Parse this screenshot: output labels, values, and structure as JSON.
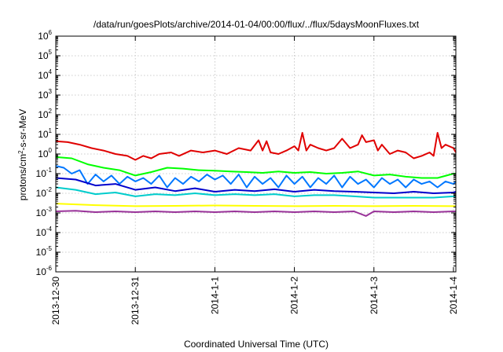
{
  "chart_data": {
    "type": "line",
    "title": "/data/run/goesPlots/archive/2014-01-04/00:00/flux/../flux/5daysMoonFluxes.txt",
    "xlabel": "Coordinated Universal Time (UTC)",
    "ylabel": {
      "prefix": "protons/cm",
      "sup": "2",
      "suffix": "-s-sr-MeV"
    },
    "y_scale": "log",
    "ylim": [
      1e-06,
      1000000.0
    ],
    "xlim": [
      0,
      5.03
    ],
    "grid": true,
    "x_ticks": [
      {
        "v": 0,
        "label": "2013-12-30"
      },
      {
        "v": 1,
        "label": "2013-12-31"
      },
      {
        "v": 2,
        "label": "2014-1-1"
      },
      {
        "v": 3,
        "label": "2014-1-2"
      },
      {
        "v": 4,
        "label": "2014-1-3"
      },
      {
        "v": 5,
        "label": "2014-1-4"
      }
    ],
    "y_ticks": [
      {
        "v": -6,
        "base": "10",
        "exp": "-6"
      },
      {
        "v": -5,
        "base": "10",
        "exp": "-5"
      },
      {
        "v": -4,
        "base": "10",
        "exp": "-4"
      },
      {
        "v": -3,
        "base": "10",
        "exp": "-3"
      },
      {
        "v": -2,
        "base": "10",
        "exp": "-2"
      },
      {
        "v": -1,
        "base": "10",
        "exp": "-1"
      },
      {
        "v": 0,
        "base": "10",
        "exp": "0"
      },
      {
        "v": 1,
        "base": "10",
        "exp": "1"
      },
      {
        "v": 2,
        "base": "10",
        "exp": "2"
      },
      {
        "v": 3,
        "base": "10",
        "exp": "3"
      },
      {
        "v": 4,
        "base": "10",
        "exp": "4"
      },
      {
        "v": 5,
        "base": "10",
        "exp": "5"
      },
      {
        "v": 6,
        "base": "10",
        "exp": "6"
      }
    ],
    "series": [
      {
        "color": "#e00000",
        "x": [
          0,
          0.15,
          0.3,
          0.45,
          0.6,
          0.75,
          0.9,
          1.0,
          1.1,
          1.2,
          1.3,
          1.45,
          1.55,
          1.7,
          1.85,
          2.0,
          2.15,
          2.3,
          2.45,
          2.55,
          2.6,
          2.65,
          2.7,
          2.8,
          2.9,
          3.0,
          3.05,
          3.1,
          3.15,
          3.2,
          3.3,
          3.4,
          3.5,
          3.6,
          3.7,
          3.8,
          3.85,
          3.9,
          4.0,
          4.05,
          4.1,
          4.2,
          4.3,
          4.4,
          4.5,
          4.6,
          4.7,
          4.75,
          4.8,
          4.85,
          4.9,
          5.0,
          5.03
        ],
        "y": [
          4.5,
          4,
          3,
          2,
          1.5,
          1,
          0.8,
          0.5,
          0.8,
          0.6,
          1,
          1.2,
          0.8,
          1.5,
          1.2,
          1.5,
          1,
          2,
          1.5,
          5,
          1.5,
          4.5,
          1.2,
          1,
          1.5,
          2.5,
          1.5,
          12,
          1.5,
          3,
          2,
          1.5,
          2,
          6,
          2,
          3,
          9,
          4,
          5,
          1.5,
          3,
          1,
          1.5,
          1.2,
          0.6,
          0.8,
          1.2,
          0.8,
          12,
          2,
          3,
          2,
          1.2
        ]
      },
      {
        "color": "#00ff00",
        "x": [
          0,
          0.2,
          0.4,
          0.6,
          0.8,
          1.0,
          1.2,
          1.4,
          1.6,
          1.8,
          2.0,
          2.2,
          2.4,
          2.6,
          2.8,
          3.0,
          3.2,
          3.4,
          3.6,
          3.8,
          4.0,
          4.2,
          4.4,
          4.6,
          4.8,
          5.0,
          5.03
        ],
        "y": [
          0.7,
          0.6,
          0.3,
          0.2,
          0.15,
          0.08,
          0.12,
          0.2,
          0.18,
          0.15,
          0.14,
          0.13,
          0.12,
          0.11,
          0.13,
          0.11,
          0.12,
          0.1,
          0.11,
          0.13,
          0.08,
          0.09,
          0.07,
          0.06,
          0.06,
          0.1,
          0.1
        ]
      },
      {
        "color": "#0077ff",
        "x": [
          0,
          0.1,
          0.2,
          0.3,
          0.4,
          0.5,
          0.6,
          0.7,
          0.8,
          0.9,
          1.0,
          1.1,
          1.2,
          1.3,
          1.4,
          1.5,
          1.6,
          1.7,
          1.8,
          1.9,
          2.0,
          2.1,
          2.2,
          2.3,
          2.4,
          2.5,
          2.6,
          2.7,
          2.8,
          2.9,
          3.0,
          3.1,
          3.2,
          3.3,
          3.4,
          3.5,
          3.6,
          3.7,
          3.8,
          3.9,
          4.0,
          4.1,
          4.2,
          4.3,
          4.4,
          4.5,
          4.6,
          4.7,
          4.8,
          4.9,
          5.0,
          5.03
        ],
        "y": [
          0.25,
          0.2,
          0.1,
          0.15,
          0.03,
          0.09,
          0.04,
          0.08,
          0.03,
          0.07,
          0.04,
          0.06,
          0.03,
          0.08,
          0.02,
          0.06,
          0.03,
          0.07,
          0.04,
          0.09,
          0.05,
          0.08,
          0.03,
          0.09,
          0.02,
          0.07,
          0.03,
          0.06,
          0.02,
          0.08,
          0.03,
          0.07,
          0.02,
          0.06,
          0.03,
          0.08,
          0.02,
          0.07,
          0.03,
          0.05,
          0.02,
          0.06,
          0.03,
          0.05,
          0.02,
          0.05,
          0.03,
          0.04,
          0.02,
          0.04,
          0.03,
          0.04
        ]
      },
      {
        "color": "#0000cc",
        "x": [
          0,
          0.25,
          0.5,
          0.75,
          1.0,
          1.25,
          1.5,
          1.75,
          2.0,
          2.25,
          2.5,
          2.75,
          3.0,
          3.25,
          3.5,
          3.75,
          4.0,
          4.25,
          4.5,
          4.75,
          5.0,
          5.03
        ],
        "y": [
          0.06,
          0.05,
          0.025,
          0.03,
          0.015,
          0.02,
          0.013,
          0.018,
          0.012,
          0.015,
          0.013,
          0.016,
          0.012,
          0.015,
          0.013,
          0.012,
          0.011,
          0.01,
          0.012,
          0.01,
          0.011,
          0.012
        ]
      },
      {
        "color": "#00cccc",
        "x": [
          0,
          0.25,
          0.5,
          0.75,
          1.0,
          1.25,
          1.5,
          1.75,
          2.0,
          2.25,
          2.5,
          2.75,
          3.0,
          3.25,
          3.5,
          3.75,
          4.0,
          4.25,
          4.5,
          4.75,
          5.0,
          5.03
        ],
        "y": [
          0.02,
          0.015,
          0.009,
          0.011,
          0.007,
          0.009,
          0.008,
          0.01,
          0.008,
          0.009,
          0.008,
          0.009,
          0.007,
          0.008,
          0.008,
          0.007,
          0.006,
          0.006,
          0.006,
          0.006,
          0.007,
          0.007
        ]
      },
      {
        "color": "#ffff00",
        "x": [
          0,
          0.5,
          1.0,
          1.5,
          2.0,
          2.5,
          3.0,
          3.5,
          4.0,
          4.5,
          5.0,
          5.03
        ],
        "y": [
          0.003,
          0.0025,
          0.0022,
          0.0023,
          0.0024,
          0.0023,
          0.0022,
          0.0023,
          0.0022,
          0.0023,
          0.0022,
          0.0022
        ]
      },
      {
        "color": "#993399",
        "x": [
          0,
          0.25,
          0.5,
          0.75,
          1.0,
          1.25,
          1.5,
          1.75,
          2.0,
          2.25,
          2.5,
          2.75,
          3.0,
          3.25,
          3.5,
          3.75,
          3.9,
          4.0,
          4.25,
          4.5,
          4.75,
          5.0,
          5.03
        ],
        "y": [
          0.0012,
          0.0013,
          0.0011,
          0.0012,
          0.0011,
          0.0012,
          0.0011,
          0.0012,
          0.0011,
          0.0012,
          0.0011,
          0.0012,
          0.0011,
          0.0012,
          0.0011,
          0.0012,
          0.0007,
          0.0012,
          0.0011,
          0.0012,
          0.0011,
          0.0012,
          0.0012
        ]
      }
    ]
  }
}
